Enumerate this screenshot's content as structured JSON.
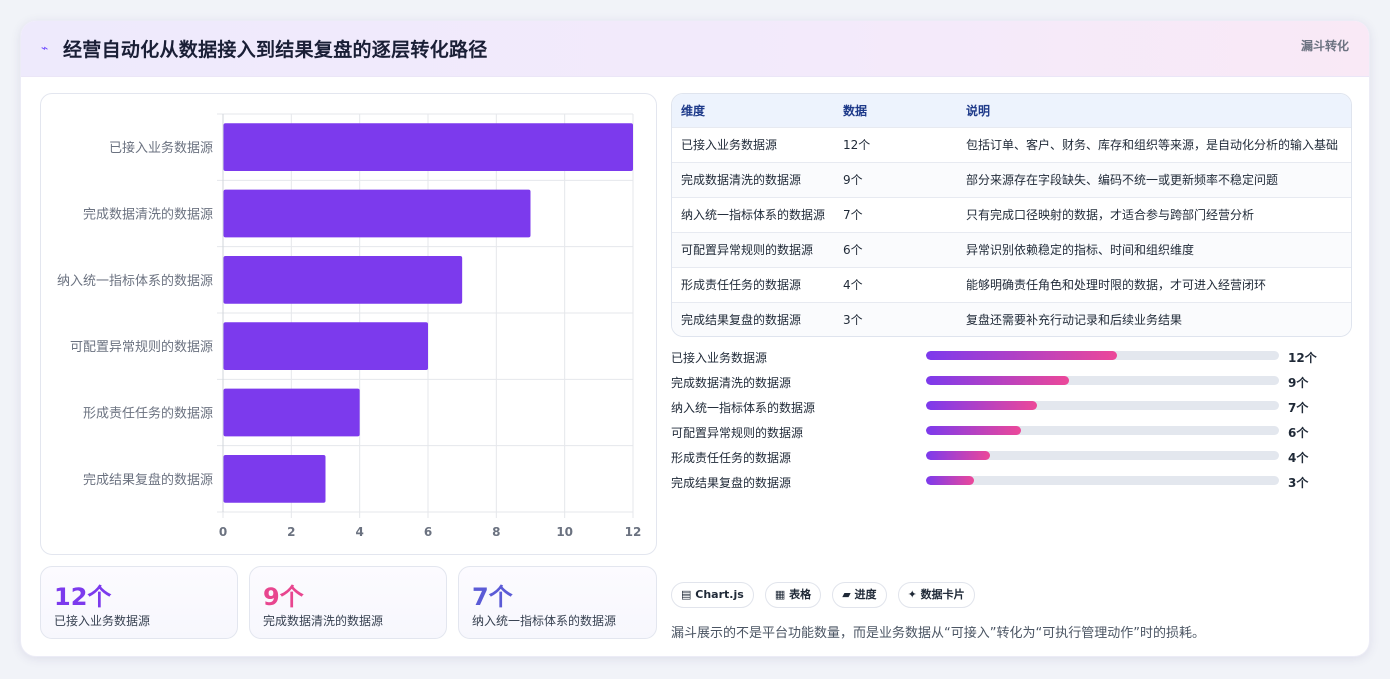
{
  "header": {
    "title_icon": "⌁",
    "title": "经营自动化从数据接入到结果复盘的逐层转化路径",
    "tag": "漏斗转化"
  },
  "chart_data": {
    "type": "bar",
    "orientation": "horizontal",
    "categories": [
      "已接入业务数据源",
      "完成数据清洗的数据源",
      "纳入统一指标体系的数据源",
      "可配置异常规则的数据源",
      "形成责任任务的数据源",
      "完成结果复盘的数据源"
    ],
    "values": [
      12,
      9,
      7,
      6,
      4,
      3
    ],
    "xticks": [
      "0",
      "2",
      "4",
      "6",
      "8",
      "10",
      "12"
    ],
    "xlim": [
      0,
      12
    ],
    "grid": true,
    "bar_color": "#7c3aed"
  },
  "stats": [
    {
      "value": "12个",
      "label": "已接入业务数据源",
      "color": "#7c3aed"
    },
    {
      "value": "9个",
      "label": "完成数据清洗的数据源",
      "color": "#e8468f"
    },
    {
      "value": "7个",
      "label": "纳入统一指标体系的数据源",
      "color": "#5b5bd6"
    }
  ],
  "table": {
    "headers": [
      "维度",
      "数据",
      "说明"
    ],
    "rows": [
      [
        "已接入业务数据源",
        "12个",
        "包括订单、客户、财务、库存和组织等来源，是自动化分析的输入基础"
      ],
      [
        "完成数据清洗的数据源",
        "9个",
        "部分来源存在字段缺失、编码不统一或更新频率不稳定问题"
      ],
      [
        "纳入统一指标体系的数据源",
        "7个",
        "只有完成口径映射的数据，才适合参与跨部门经营分析"
      ],
      [
        "可配置异常规则的数据源",
        "6个",
        "异常识别依赖稳定的指标、时间和组织维度"
      ],
      [
        "形成责任任务的数据源",
        "4个",
        "能够明确责任角色和处理时限的数据，才可进入经营闭环"
      ],
      [
        "完成结果复盘的数据源",
        "3个",
        "复盘还需要补充行动记录和后续业务结果"
      ]
    ]
  },
  "progress": [
    {
      "label": "已接入业务数据源",
      "value": "12个",
      "fraction": 0.54
    },
    {
      "label": "完成数据清洗的数据源",
      "value": "9个",
      "fraction": 0.405
    },
    {
      "label": "纳入统一指标体系的数据源",
      "value": "7个",
      "fraction": 0.315
    },
    {
      "label": "可配置异常规则的数据源",
      "value": "6个",
      "fraction": 0.27
    },
    {
      "label": "形成责任任务的数据源",
      "value": "4个",
      "fraction": 0.18
    },
    {
      "label": "完成结果复盘的数据源",
      "value": "3个",
      "fraction": 0.135
    }
  ],
  "chips": [
    {
      "icon": "▤",
      "label": "Chart.js",
      "icon_name": "chart-icon"
    },
    {
      "icon": "▦",
      "label": "表格",
      "icon_name": "table-icon"
    },
    {
      "icon": "▰",
      "label": "进度",
      "icon_name": "progress-icon"
    },
    {
      "icon": "✦",
      "label": "数据卡片",
      "icon_name": "sparkle-icon"
    }
  ],
  "note": "漏斗展示的不是平台功能数量，而是业务数据从“可接入”转化为“可执行管理动作”时的损耗。"
}
